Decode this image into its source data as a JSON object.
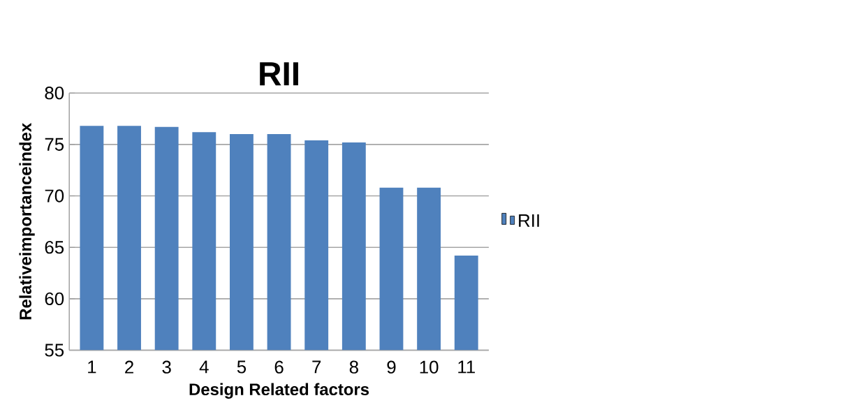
{
  "chart_data": {
    "type": "bar",
    "title": "RII",
    "xlabel": "Design Related factors",
    "ylabel": "Relativeimportanceindex",
    "categories": [
      "1",
      "2",
      "3",
      "4",
      "5",
      "6",
      "7",
      "8",
      "9",
      "10",
      "11"
    ],
    "series": [
      {
        "name": "RII",
        "color": "#4f81bd",
        "values": [
          76.8,
          76.8,
          76.7,
          76.2,
          76.0,
          76.0,
          75.4,
          75.2,
          70.8,
          70.8,
          64.2
        ]
      }
    ],
    "ylim": [
      55,
      80
    ],
    "yticks": [
      55,
      60,
      65,
      70,
      75,
      80
    ],
    "grid": "y",
    "legend": "right"
  }
}
